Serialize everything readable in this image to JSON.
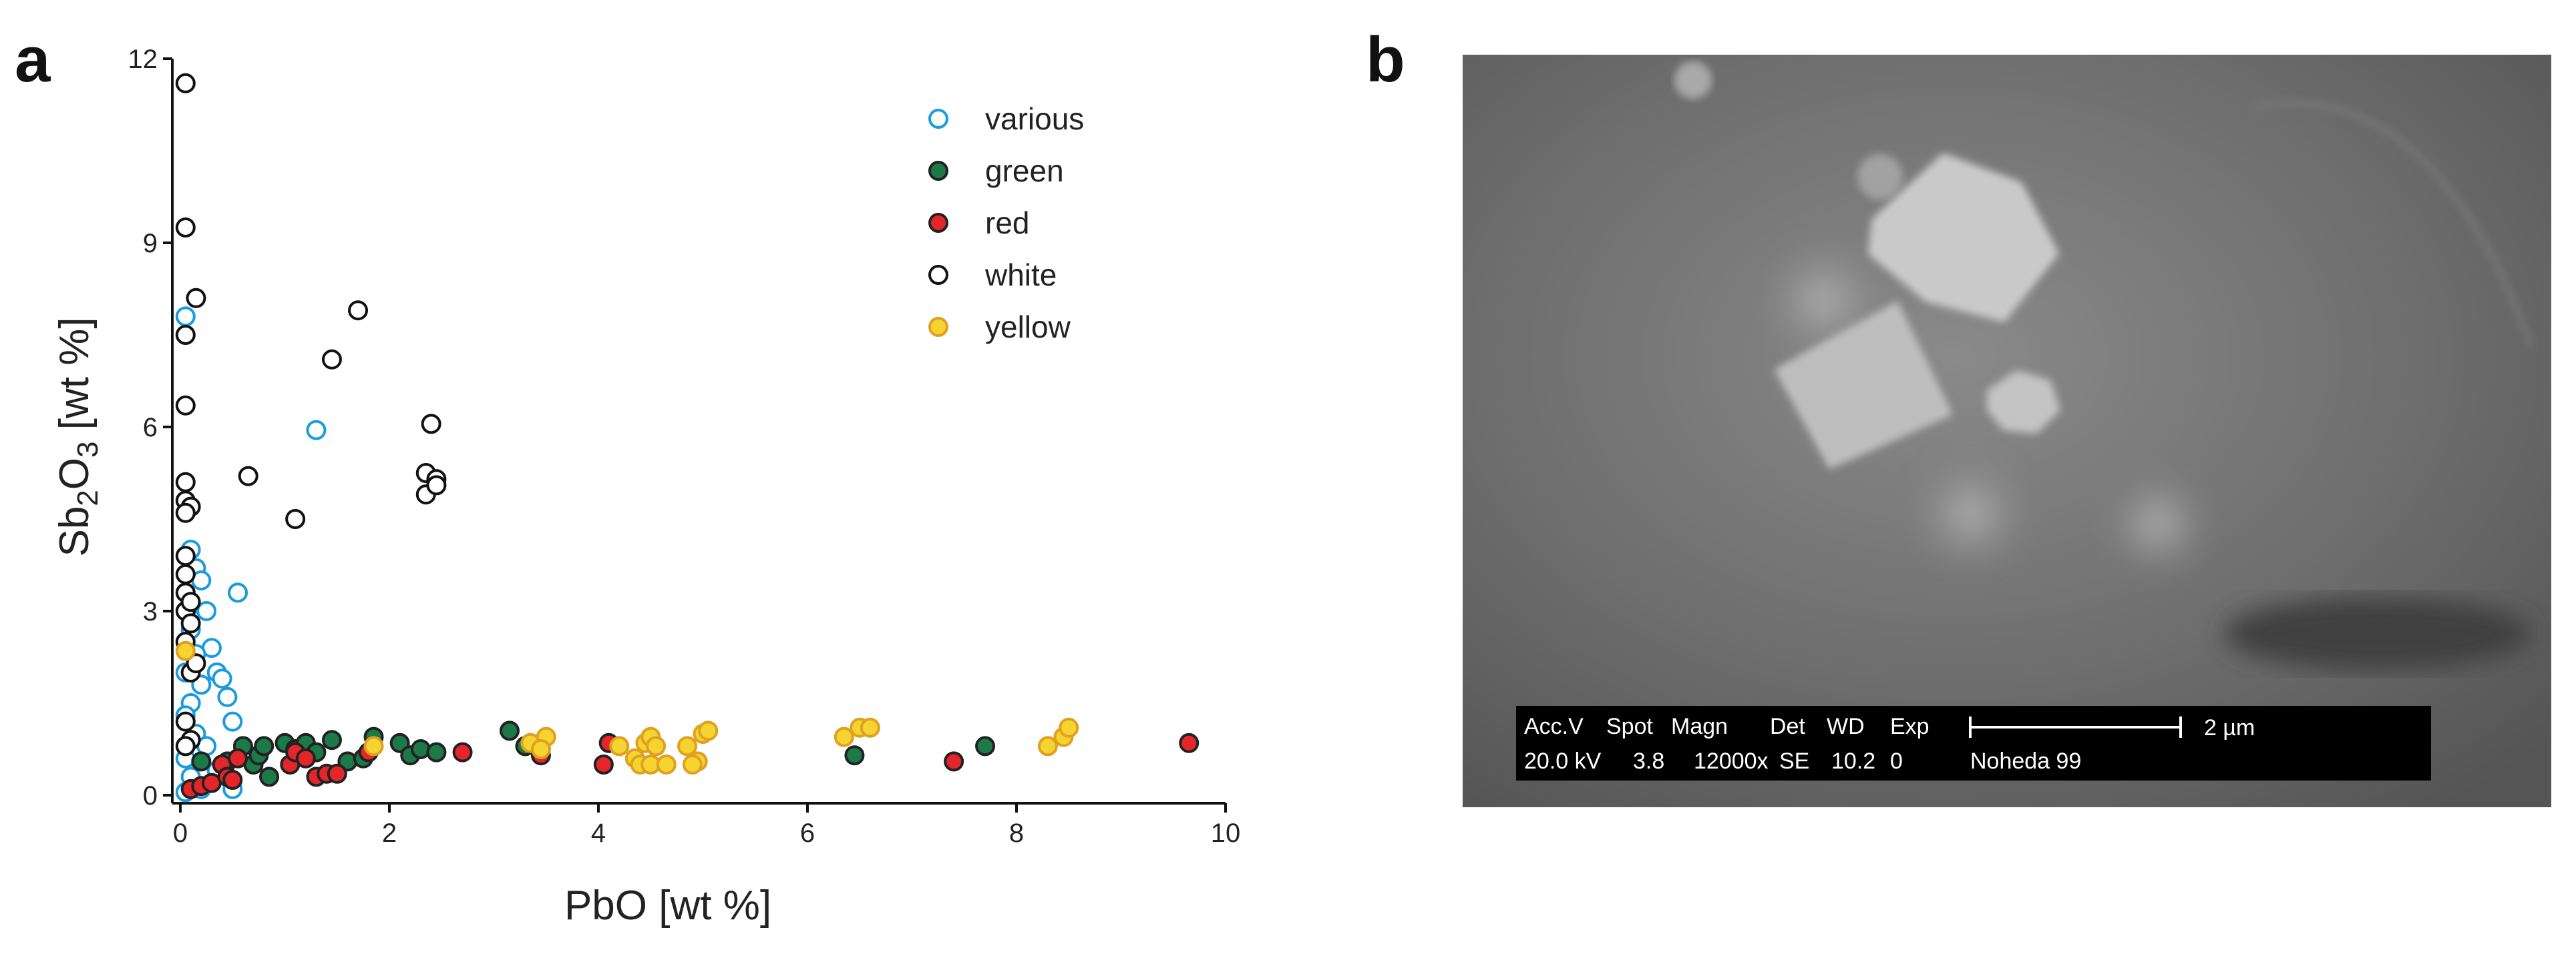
{
  "panel_labels": {
    "a": "a",
    "b": "b"
  },
  "colors": {
    "various": "#1a9be0",
    "green": "#1b7a47",
    "red": "#e4262a",
    "white": "#111111",
    "yellow": "#f5d330",
    "axis": "#111111"
  },
  "chart_data": {
    "type": "scatter",
    "xlabel": "PbO [wt %]",
    "ylabel": {
      "base": "Sb",
      "sub1": "2",
      "mid": "O",
      "sub2": "3",
      "rest": " [wt %]"
    },
    "xlim": [
      0,
      10
    ],
    "ylim": [
      0,
      12
    ],
    "xticks": [
      0,
      2,
      4,
      6,
      8,
      10
    ],
    "yticks": [
      0,
      3,
      6,
      9,
      12
    ],
    "grid": false,
    "legend_position": "top-right",
    "series": [
      {
        "name": "various",
        "style": "open",
        "points": [
          [
            0.05,
            7.8
          ],
          [
            1.3,
            5.95
          ],
          [
            0.55,
            3.3
          ],
          [
            0.1,
            4.0
          ],
          [
            0.15,
            3.7
          ],
          [
            0.2,
            3.5
          ],
          [
            0.1,
            3.1
          ],
          [
            0.25,
            3.0
          ],
          [
            0.3,
            2.4
          ],
          [
            0.35,
            2.0
          ],
          [
            0.4,
            1.9
          ],
          [
            0.45,
            1.6
          ],
          [
            0.5,
            1.2
          ],
          [
            0.1,
            2.7
          ],
          [
            0.15,
            2.3
          ],
          [
            0.05,
            2.0
          ],
          [
            0.2,
            1.8
          ],
          [
            0.1,
            1.5
          ],
          [
            0.05,
            1.3
          ],
          [
            0.15,
            1.0
          ],
          [
            0.25,
            0.8
          ],
          [
            0.05,
            0.6
          ],
          [
            0.1,
            0.3
          ],
          [
            0.35,
            0.4
          ],
          [
            0.5,
            0.1
          ],
          [
            0.05,
            0.05
          ],
          [
            0.2,
            0.1
          ]
        ]
      },
      {
        "name": "green",
        "style": "filled",
        "points": [
          [
            0.2,
            0.55
          ],
          [
            0.45,
            0.55
          ],
          [
            0.6,
            0.8
          ],
          [
            0.7,
            0.5
          ],
          [
            0.75,
            0.65
          ],
          [
            0.8,
            0.8
          ],
          [
            0.85,
            0.3
          ],
          [
            1.0,
            0.85
          ],
          [
            1.1,
            0.75
          ],
          [
            1.2,
            0.85
          ],
          [
            1.3,
            0.7
          ],
          [
            1.45,
            0.9
          ],
          [
            1.6,
            0.55
          ],
          [
            1.75,
            0.6
          ],
          [
            1.85,
            0.95
          ],
          [
            2.1,
            0.85
          ],
          [
            2.2,
            0.65
          ],
          [
            2.3,
            0.75
          ],
          [
            2.45,
            0.7
          ],
          [
            3.15,
            1.05
          ],
          [
            3.3,
            0.8
          ],
          [
            6.45,
            0.65
          ],
          [
            7.7,
            0.8
          ]
        ]
      },
      {
        "name": "red",
        "style": "filled",
        "points": [
          [
            0.1,
            0.1
          ],
          [
            0.2,
            0.15
          ],
          [
            0.3,
            0.2
          ],
          [
            0.4,
            0.5
          ],
          [
            0.45,
            0.3
          ],
          [
            0.5,
            0.25
          ],
          [
            0.55,
            0.6
          ],
          [
            1.05,
            0.5
          ],
          [
            1.1,
            0.7
          ],
          [
            1.2,
            0.6
          ],
          [
            1.3,
            0.3
          ],
          [
            1.4,
            0.35
          ],
          [
            1.5,
            0.35
          ],
          [
            1.8,
            0.7
          ],
          [
            2.7,
            0.7
          ],
          [
            3.45,
            0.65
          ],
          [
            4.05,
            0.5
          ],
          [
            4.1,
            0.85
          ],
          [
            7.4,
            0.55
          ],
          [
            9.65,
            0.85
          ]
        ]
      },
      {
        "name": "white",
        "style": "open",
        "points": [
          [
            0.05,
            11.6
          ],
          [
            0.05,
            9.25
          ],
          [
            0.15,
            8.1
          ],
          [
            1.7,
            7.9
          ],
          [
            0.05,
            7.5
          ],
          [
            1.45,
            7.1
          ],
          [
            0.05,
            6.35
          ],
          [
            2.4,
            6.05
          ],
          [
            0.65,
            5.2
          ],
          [
            2.35,
            5.25
          ],
          [
            2.45,
            5.15
          ],
          [
            2.35,
            4.9
          ],
          [
            2.45,
            5.05
          ],
          [
            0.05,
            5.1
          ],
          [
            0.05,
            4.8
          ],
          [
            0.1,
            4.7
          ],
          [
            1.1,
            4.5
          ],
          [
            0.05,
            4.6
          ],
          [
            0.05,
            3.9
          ],
          [
            0.05,
            3.6
          ],
          [
            0.05,
            3.3
          ],
          [
            0.05,
            3.0
          ],
          [
            0.1,
            2.8
          ],
          [
            0.05,
            2.5
          ],
          [
            0.1,
            2.0
          ],
          [
            0.05,
            1.2
          ],
          [
            0.1,
            0.9
          ],
          [
            0.05,
            0.8
          ],
          [
            0.15,
            2.15
          ],
          [
            0.1,
            3.15
          ]
        ]
      },
      {
        "name": "yellow",
        "style": "filled",
        "points": [
          [
            0.05,
            2.35
          ],
          [
            1.85,
            0.8
          ],
          [
            3.35,
            0.85
          ],
          [
            3.5,
            0.95
          ],
          [
            3.45,
            0.75
          ],
          [
            4.2,
            0.8
          ],
          [
            4.35,
            0.6
          ],
          [
            4.45,
            0.85
          ],
          [
            4.5,
            0.95
          ],
          [
            4.55,
            0.8
          ],
          [
            4.4,
            0.5
          ],
          [
            4.5,
            0.5
          ],
          [
            4.65,
            0.5
          ],
          [
            4.85,
            0.8
          ],
          [
            4.95,
            0.55
          ],
          [
            5.0,
            1.0
          ],
          [
            5.05,
            1.05
          ],
          [
            4.9,
            0.5
          ],
          [
            6.35,
            0.95
          ],
          [
            6.5,
            1.1
          ],
          [
            6.6,
            1.1
          ],
          [
            8.3,
            0.8
          ],
          [
            8.45,
            0.95
          ],
          [
            8.5,
            1.1
          ]
        ]
      }
    ]
  },
  "sem_image": {
    "header": [
      "Acc.V",
      "Spot",
      "Magn",
      "Det",
      "WD",
      "Exp"
    ],
    "values": [
      "20.0 kV",
      "3.8",
      "12000x",
      "SE",
      "10.2",
      "0"
    ],
    "scale_label": "2 µm",
    "operator": "Noheda 99"
  }
}
